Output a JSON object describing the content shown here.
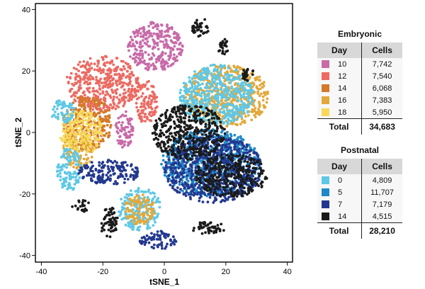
{
  "chart_data": {
    "type": "scatter",
    "xlabel": "tSNE_1",
    "ylabel": "tSNE_2",
    "xlim": [
      -42,
      42
    ],
    "ylim": [
      -42,
      42
    ],
    "xticks": [
      -40,
      -20,
      0,
      20,
      40
    ],
    "yticks": [
      40,
      20,
      0,
      -20,
      -40
    ],
    "grid": false,
    "colors": {
      "E10": "#c86aa8",
      "E12": "#ec6a62",
      "E14": "#d4782a",
      "E16": "#e3a83a",
      "E18": "#f7d85a",
      "P0": "#5ec8e6",
      "P5": "#1f88c8",
      "P7": "#22388f",
      "P14": "#1a1a1a"
    },
    "clusters": [
      {
        "group": "E12",
        "center": [
          -20,
          16
        ],
        "spread": [
          12,
          9
        ]
      },
      {
        "group": "E12",
        "center": [
          -6,
          10
        ],
        "spread": [
          4,
          7
        ]
      },
      {
        "group": "E10",
        "center": [
          -3,
          28
        ],
        "spread": [
          9,
          8
        ]
      },
      {
        "group": "E10",
        "center": [
          -13,
          1
        ],
        "spread": [
          3,
          6
        ]
      },
      {
        "group": "E14",
        "center": [
          -25,
          3
        ],
        "spread": [
          8,
          9
        ]
      },
      {
        "group": "E16",
        "center": [
          -28,
          -6
        ],
        "spread": [
          5,
          6
        ]
      },
      {
        "group": "E16",
        "center": [
          20,
          12
        ],
        "spread": [
          14,
          10
        ]
      },
      {
        "group": "E18",
        "center": [
          -27,
          0
        ],
        "spread": [
          7,
          7
        ]
      },
      {
        "group": "P0",
        "center": [
          17,
          12
        ],
        "spread": [
          12,
          10
        ]
      },
      {
        "group": "P0",
        "center": [
          -31,
          -12
        ],
        "spread": [
          4,
          7
        ]
      },
      {
        "group": "P0",
        "center": [
          -8,
          -25
        ],
        "spread": [
          7,
          7
        ]
      },
      {
        "group": "P0",
        "center": [
          -33,
          7
        ],
        "spread": [
          4,
          4
        ]
      },
      {
        "group": "E16",
        "center": [
          -8,
          -25
        ],
        "spread": [
          5,
          5
        ]
      },
      {
        "group": "P5",
        "center": [
          15,
          -10
        ],
        "spread": [
          16,
          11
        ]
      },
      {
        "group": "P7",
        "center": [
          16,
          -12
        ],
        "spread": [
          16,
          11
        ]
      },
      {
        "group": "P7",
        "center": [
          -18,
          -13
        ],
        "spread": [
          10,
          4
        ]
      },
      {
        "group": "P7",
        "center": [
          -2,
          -35
        ],
        "spread": [
          6,
          3
        ]
      },
      {
        "group": "P14",
        "center": [
          8,
          0
        ],
        "spread": [
          12,
          9
        ]
      },
      {
        "group": "P14",
        "center": [
          22,
          -14
        ],
        "spread": [
          12,
          7
        ]
      },
      {
        "group": "P14",
        "center": [
          12,
          34
        ],
        "spread": [
          3,
          3
        ]
      },
      {
        "group": "P14",
        "center": [
          19,
          28
        ],
        "spread": [
          2,
          3
        ]
      },
      {
        "group": "P14",
        "center": [
          27,
          19
        ],
        "spread": [
          2,
          3
        ]
      },
      {
        "group": "P14",
        "center": [
          -27,
          -24
        ],
        "spread": [
          3,
          2
        ]
      },
      {
        "group": "P14",
        "center": [
          -18,
          -29
        ],
        "spread": [
          3,
          5
        ]
      },
      {
        "group": "P14",
        "center": [
          14,
          -31
        ],
        "spread": [
          6,
          2
        ]
      }
    ]
  },
  "legend": {
    "embryonic": {
      "title": "Embryonic",
      "col_day": "Day",
      "col_cells": "Cells",
      "rows": [
        {
          "day": "10",
          "cells": "7,742",
          "color": "#c86aa8"
        },
        {
          "day": "12",
          "cells": "7,540",
          "color": "#ec6a62"
        },
        {
          "day": "14",
          "cells": "6,068",
          "color": "#d4782a"
        },
        {
          "day": "16",
          "cells": "7,383",
          "color": "#e3a83a"
        },
        {
          "day": "18",
          "cells": "5,950",
          "color": "#f7d85a"
        }
      ],
      "total_label": "Total",
      "total": "34,683"
    },
    "postnatal": {
      "title": "Postnatal",
      "col_day": "Day",
      "col_cells": "Cells",
      "rows": [
        {
          "day": "0",
          "cells": "4,809",
          "color": "#5ec8e6"
        },
        {
          "day": "5",
          "cells": "11,707",
          "color": "#1f88c8"
        },
        {
          "day": "7",
          "cells": "7,179",
          "color": "#22388f"
        },
        {
          "day": "14",
          "cells": "4,515",
          "color": "#1a1a1a"
        }
      ],
      "total_label": "Total",
      "total": "28,210"
    }
  }
}
